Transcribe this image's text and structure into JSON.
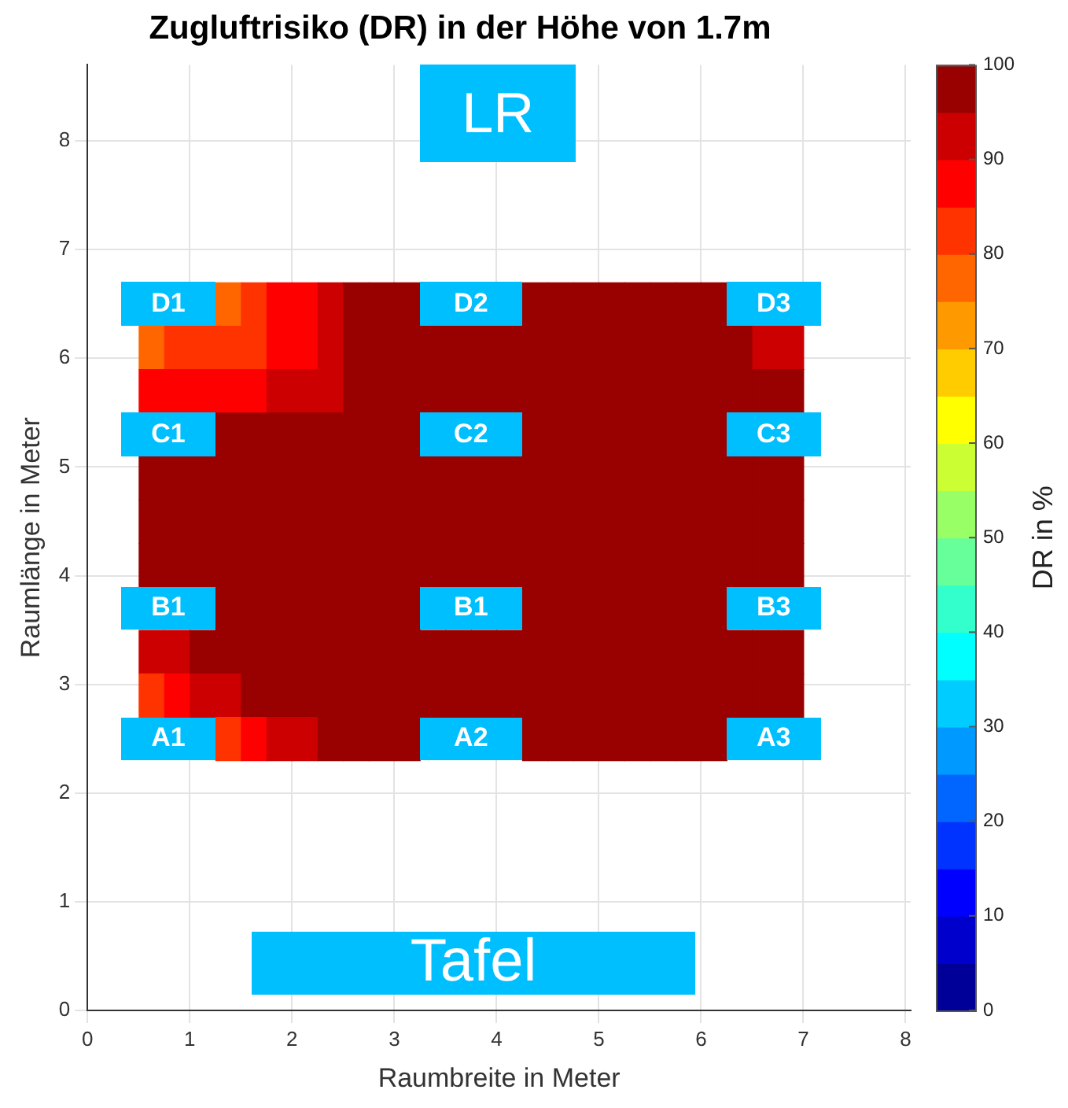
{
  "chart_data": {
    "type": "heatmap",
    "title": "Zugluftrisiko (DR) in der Höhe von 1.7m",
    "xlabel": "Raumbreite in Meter",
    "ylabel": "Raumlänge in Meter",
    "clabel": "DR in %",
    "x": [
      0.625,
      0.875,
      1.125,
      1.375,
      1.625,
      1.875,
      2.125,
      2.375,
      2.625,
      2.875,
      3.125,
      3.375,
      3.625,
      3.875,
      4.125,
      4.375,
      4.625,
      4.875,
      5.125,
      5.375,
      5.625,
      5.875,
      6.125,
      6.375,
      6.625,
      6.875
    ],
    "y": [
      6.5,
      6.1,
      5.7,
      5.3,
      4.9,
      4.5,
      4.1,
      3.7,
      3.3,
      2.9,
      2.5
    ],
    "cells": [
      [
        null,
        null,
        null,
        78,
        82,
        85,
        88,
        92,
        96,
        99,
        100,
        null,
        null,
        null,
        null,
        100,
        100,
        100,
        100,
        100,
        99,
        97,
        95,
        null,
        null,
        null
      ],
      [
        79,
        80,
        81,
        83,
        84,
        86,
        89,
        92,
        96,
        99,
        100,
        100,
        100,
        100,
        100,
        100,
        100,
        100,
        100,
        100,
        100,
        99,
        97,
        95,
        94,
        93
      ],
      [
        87,
        88,
        88,
        88,
        89,
        90,
        92,
        94,
        97,
        99,
        100,
        100,
        100,
        100,
        100,
        100,
        100,
        100,
        100,
        100,
        100,
        100,
        100,
        99,
        98,
        97
      ],
      [
        null,
        null,
        null,
        98,
        98,
        99,
        99,
        100,
        100,
        100,
        100,
        null,
        null,
        null,
        null,
        100,
        100,
        100,
        100,
        100,
        100,
        100,
        100,
        null,
        null,
        null
      ],
      [
        100,
        100,
        100,
        100,
        100,
        100,
        100,
        100,
        100,
        100,
        100,
        100,
        100,
        100,
        100,
        100,
        100,
        100,
        100,
        100,
        100,
        100,
        100,
        100,
        100,
        100
      ],
      [
        100,
        100,
        100,
        100,
        100,
        100,
        100,
        100,
        100,
        100,
        100,
        100,
        100,
        100,
        100,
        100,
        100,
        100,
        100,
        100,
        100,
        100,
        100,
        100,
        100,
        100
      ],
      [
        100,
        100,
        100,
        100,
        100,
        100,
        100,
        100,
        100,
        100,
        100,
        100,
        100,
        100,
        100,
        100,
        100,
        100,
        100,
        100,
        100,
        100,
        100,
        100,
        100,
        100
      ],
      [
        null,
        null,
        null,
        100,
        100,
        100,
        100,
        100,
        100,
        100,
        100,
        null,
        null,
        null,
        null,
        100,
        100,
        100,
        100,
        100,
        100,
        100,
        100,
        null,
        null,
        null
      ],
      [
        92,
        94,
        96,
        98,
        99,
        100,
        100,
        100,
        100,
        100,
        100,
        100,
        100,
        100,
        100,
        100,
        100,
        100,
        100,
        100,
        100,
        100,
        100,
        100,
        100,
        100
      ],
      [
        84,
        87,
        90,
        93,
        96,
        98,
        99,
        100,
        100,
        100,
        100,
        100,
        100,
        100,
        100,
        100,
        100,
        100,
        100,
        100,
        100,
        100,
        100,
        100,
        100,
        100
      ],
      [
        null,
        null,
        null,
        82,
        86,
        90,
        93,
        96,
        98,
        99,
        100,
        null,
        null,
        null,
        null,
        100,
        100,
        100,
        100,
        100,
        100,
        100,
        100,
        null,
        null,
        null
      ]
    ],
    "clim": [
      0,
      100
    ],
    "cticks": [
      0,
      10,
      20,
      30,
      40,
      50,
      60,
      70,
      80,
      90,
      100
    ],
    "xlim": [
      0,
      8.05
    ],
    "xticks": [
      0,
      1,
      2,
      3,
      4,
      5,
      6,
      7,
      8
    ],
    "ylim": [
      0,
      8.7
    ],
    "yticks": [
      0,
      1,
      2,
      3,
      4,
      5,
      6,
      7,
      8
    ],
    "grid": true,
    "annotations": [
      "LR",
      "D1",
      "D2",
      "D3",
      "C1",
      "C2",
      "C3",
      "B1",
      "B1",
      "B3",
      "A1",
      "A2",
      "A3",
      "Tafel"
    ]
  }
}
